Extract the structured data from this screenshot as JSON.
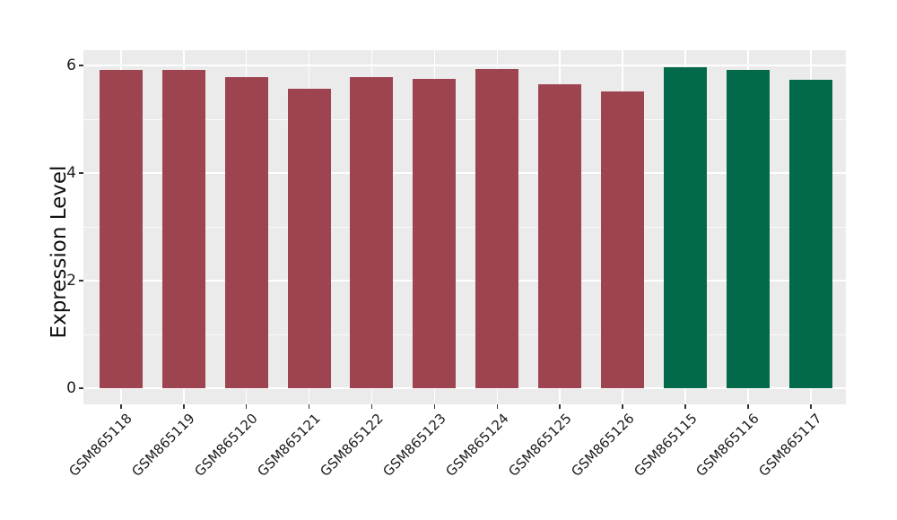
{
  "chart_data": {
    "type": "bar",
    "title": "",
    "xlabel": "",
    "ylabel": "Expression Level",
    "categories": [
      "GSM865118",
      "GSM865119",
      "GSM865120",
      "GSM865121",
      "GSM865122",
      "GSM865123",
      "GSM865124",
      "GSM865125",
      "GSM865126",
      "GSM865115",
      "GSM865116",
      "GSM865117"
    ],
    "values": [
      5.92,
      5.92,
      5.79,
      5.56,
      5.78,
      5.75,
      5.94,
      5.65,
      5.51,
      5.97,
      5.91,
      5.73
    ],
    "bar_colors": [
      "#9E4451",
      "#9E4451",
      "#9E4451",
      "#9E4451",
      "#9E4451",
      "#9E4451",
      "#9E4451",
      "#9E4451",
      "#9E4451",
      "#026A4B",
      "#026A4B",
      "#026A4B"
    ],
    "group_colors": {
      "red_group": "#9E4451",
      "green_group": "#026A4B"
    },
    "yticks": [
      0,
      2,
      4,
      6
    ],
    "yminor_ticks": [
      1,
      3,
      5
    ],
    "ylim": [
      -0.3,
      6.3
    ],
    "grid": true,
    "legend": false,
    "panel_bg": "#EBEBEB",
    "grid_color": "#FFFFFF",
    "tick_color": "#333333",
    "text_color": "#1C1C1C"
  }
}
